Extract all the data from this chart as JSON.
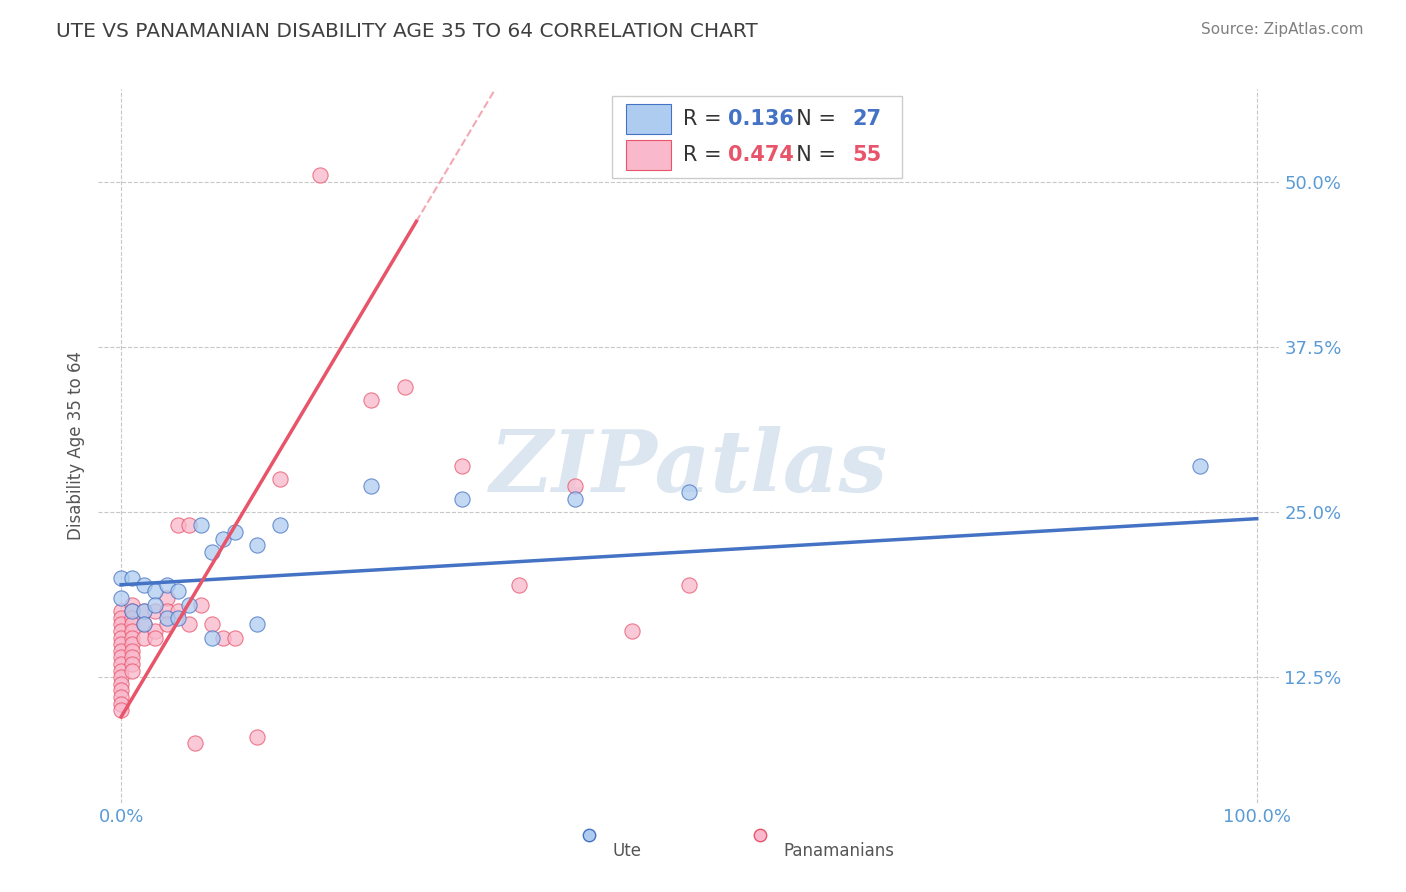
{
  "title": "UTE VS PANAMANIAN DISABILITY AGE 35 TO 64 CORRELATION CHART",
  "source": "Source: ZipAtlas.com",
  "ylabel_label": "Disability Age 35 to 64",
  "xlim": [
    -0.02,
    1.02
  ],
  "ylim": [
    0.03,
    0.57
  ],
  "R_ute": 0.136,
  "N_ute": 27,
  "R_pan": 0.474,
  "N_pan": 55,
  "ute_color": "#aeccf0",
  "pan_color": "#f9b8cc",
  "ute_edge_color": "#4472c4",
  "pan_edge_color": "#e8546a",
  "ute_line_color": "#4472c4",
  "pan_line_color": "#e8546a",
  "title_color": "#404040",
  "source_color": "#808080",
  "axis_label_color": "#555555",
  "tick_color": "#5b9bd5",
  "background_color": "#ffffff",
  "grid_color": "#c8c8c8",
  "watermark_color": "#dce6f0",
  "ytick_vals": [
    0.125,
    0.25,
    0.375,
    0.5
  ],
  "ytick_labels": [
    "12.5%",
    "25.0%",
    "37.5%",
    "50.0%"
  ],
  "ute_points": [
    [
      0.0,
      0.2
    ],
    [
      0.0,
      0.185
    ],
    [
      0.01,
      0.2
    ],
    [
      0.01,
      0.175
    ],
    [
      0.02,
      0.195
    ],
    [
      0.02,
      0.175
    ],
    [
      0.02,
      0.165
    ],
    [
      0.03,
      0.19
    ],
    [
      0.03,
      0.18
    ],
    [
      0.04,
      0.195
    ],
    [
      0.04,
      0.17
    ],
    [
      0.05,
      0.19
    ],
    [
      0.05,
      0.17
    ],
    [
      0.06,
      0.18
    ],
    [
      0.07,
      0.24
    ],
    [
      0.08,
      0.22
    ],
    [
      0.09,
      0.23
    ],
    [
      0.1,
      0.235
    ],
    [
      0.12,
      0.225
    ],
    [
      0.14,
      0.24
    ],
    [
      0.08,
      0.155
    ],
    [
      0.12,
      0.165
    ],
    [
      0.22,
      0.27
    ],
    [
      0.3,
      0.26
    ],
    [
      0.4,
      0.26
    ],
    [
      0.5,
      0.265
    ],
    [
      0.95,
      0.285
    ]
  ],
  "pan_points": [
    [
      0.0,
      0.175
    ],
    [
      0.0,
      0.17
    ],
    [
      0.0,
      0.165
    ],
    [
      0.0,
      0.16
    ],
    [
      0.0,
      0.155
    ],
    [
      0.0,
      0.15
    ],
    [
      0.0,
      0.145
    ],
    [
      0.0,
      0.14
    ],
    [
      0.0,
      0.135
    ],
    [
      0.0,
      0.13
    ],
    [
      0.0,
      0.125
    ],
    [
      0.0,
      0.12
    ],
    [
      0.0,
      0.115
    ],
    [
      0.0,
      0.11
    ],
    [
      0.0,
      0.105
    ],
    [
      0.0,
      0.1
    ],
    [
      0.01,
      0.18
    ],
    [
      0.01,
      0.175
    ],
    [
      0.01,
      0.17
    ],
    [
      0.01,
      0.165
    ],
    [
      0.01,
      0.16
    ],
    [
      0.01,
      0.155
    ],
    [
      0.01,
      0.15
    ],
    [
      0.01,
      0.145
    ],
    [
      0.01,
      0.14
    ],
    [
      0.01,
      0.135
    ],
    [
      0.01,
      0.13
    ],
    [
      0.02,
      0.175
    ],
    [
      0.02,
      0.165
    ],
    [
      0.02,
      0.155
    ],
    [
      0.03,
      0.175
    ],
    [
      0.03,
      0.16
    ],
    [
      0.03,
      0.155
    ],
    [
      0.04,
      0.185
    ],
    [
      0.04,
      0.175
    ],
    [
      0.04,
      0.165
    ],
    [
      0.05,
      0.24
    ],
    [
      0.05,
      0.175
    ],
    [
      0.06,
      0.24
    ],
    [
      0.06,
      0.165
    ],
    [
      0.07,
      0.18
    ],
    [
      0.08,
      0.165
    ],
    [
      0.09,
      0.155
    ],
    [
      0.1,
      0.155
    ],
    [
      0.12,
      0.08
    ],
    [
      0.14,
      0.275
    ],
    [
      0.22,
      0.335
    ],
    [
      0.25,
      0.345
    ],
    [
      0.3,
      0.285
    ],
    [
      0.35,
      0.195
    ],
    [
      0.4,
      0.27
    ],
    [
      0.45,
      0.16
    ],
    [
      0.5,
      0.195
    ],
    [
      0.175,
      0.505
    ],
    [
      0.065,
      0.075
    ]
  ]
}
